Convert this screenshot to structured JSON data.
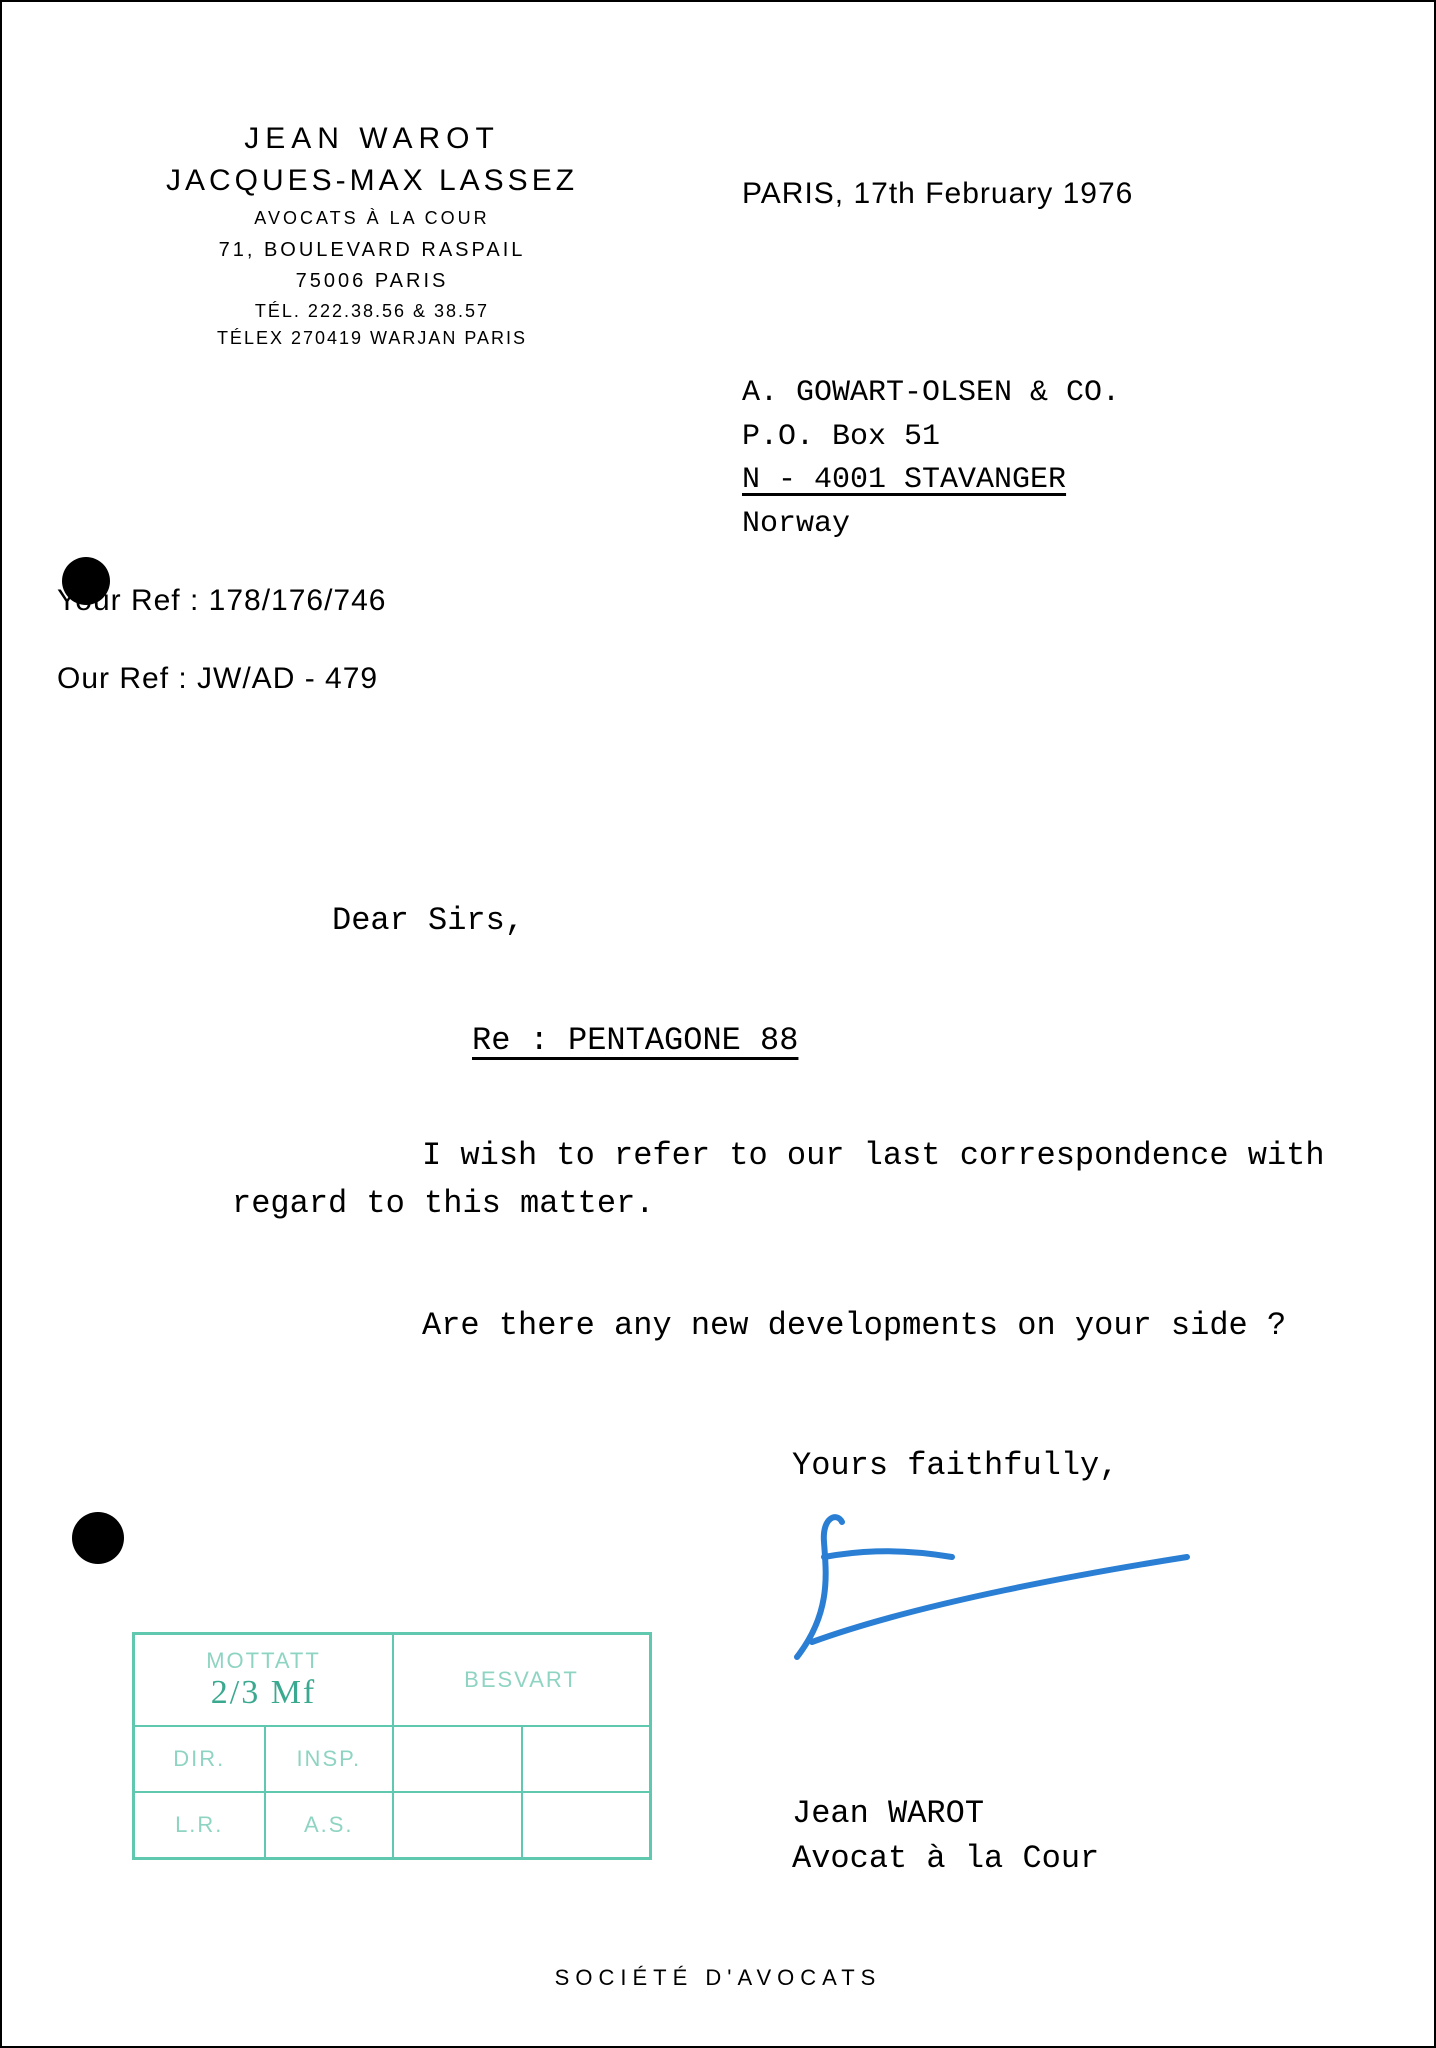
{
  "colors": {
    "paper": "#ffffff",
    "ink": "#000000",
    "signature_ink": "#2a7fd4",
    "stamp_ink": "#5fc8ae"
  },
  "letterhead": {
    "name1": "JEAN WAROT",
    "name2": "JACQUES-MAX LASSEZ",
    "subtitle": "AVOCATS À LA COUR",
    "street": "71, BOULEVARD RASPAIL",
    "city": "75006 PARIS",
    "tel": "TÉL. 222.38.56 & 38.57",
    "telex": "TÉLEX 270419 WARJAN PARIS"
  },
  "date_line": "PARIS, 17th February 1976",
  "addressee": {
    "line1": "A. GOWART-OLSEN & CO.",
    "line2": "P.O. Box 51",
    "line3_underlined": "N - 4001 STAVANGER",
    "line4": "Norway"
  },
  "refs": {
    "your_ref": "Your Ref : 178/176/746",
    "our_ref": "Our Ref : JW/AD - 479"
  },
  "salutation": "Dear Sirs,",
  "subject": "Re : PENTAGONE 88",
  "body": {
    "p1": "I wish to refer to our last correspondence with regard to this matter.",
    "p2": "Are there any new developments on your side ?"
  },
  "closing": "Yours faithfully,",
  "signatory": {
    "name": "Jean WAROT",
    "title": "Avocat à la Cour"
  },
  "footer": "SOCIÉTÉ D'AVOCATS",
  "stamp": {
    "border_color": "#5fc8ae",
    "text_color": "#8fd4c2",
    "cells": {
      "mottatt": "MOTTATT",
      "besvart": "BESVART",
      "dir": "DIR.",
      "insp": "INSP.",
      "lr": "L.R.",
      "as": "A.S."
    },
    "handwriting": "2/3 Mf"
  },
  "signature_svg": {
    "stroke": "#2a7fd4",
    "stroke_width": 6,
    "paths": [
      "M 60 20 C 55 10, 40 15, 42 40 C 44 70, 50 110, 15 155",
      "M 42 55 C 70 50, 110 45, 170 55",
      "M 30 140 C 140 100, 310 70, 405 55"
    ]
  }
}
